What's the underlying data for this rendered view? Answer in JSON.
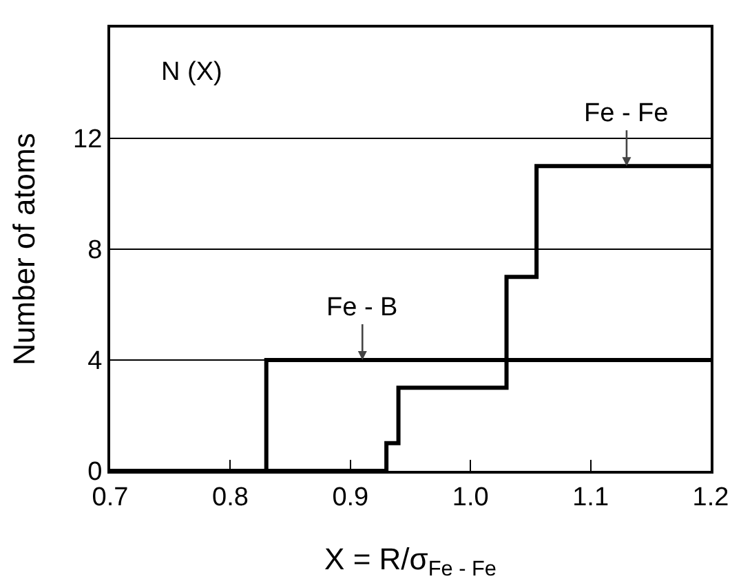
{
  "chart_data": {
    "type": "step",
    "xlabel": "X = R/σ$_{Fe - Fe}$",
    "ylabel": "Number of atoms",
    "series": [
      {
        "color": "#000000",
        "x": [
          0.7,
          0.83,
          1.2
        ],
        "values": [
          0,
          4,
          4
        ]
      },
      {
        "color": "#000000",
        "x": [
          0.7,
          0.93,
          0.94,
          1.03,
          1.055,
          1.2
        ],
        "values": [
          0,
          1,
          3,
          7,
          11,
          11
        ]
      }
    ],
    "annotations": [
      "N (X)",
      {
        "text": "Fe - B",
        "x": 0.91,
        "y": 4
      },
      {
        "text": "Fe - Fe",
        "x": 1.13,
        "y": 11
      }
    ],
    "xlim": [
      0.7,
      1.2
    ],
    "xticks": [
      0.7,
      0.8,
      0.9,
      {
        "value": 1,
        "label": "1.0"
      },
      1.1,
      1.2
    ],
    "ylim": [
      0,
      16
    ],
    "yticks": [
      0,
      4,
      8,
      12
    ],
    "grid": "y",
    "line_style": "solid",
    "marker": "none"
  }
}
